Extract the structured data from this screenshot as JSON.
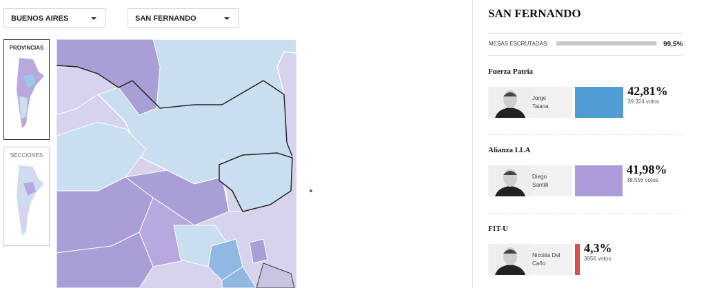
{
  "filters": {
    "province": "BUENOS AIRES",
    "district": "SAN FERNANDO"
  },
  "map_views": {
    "provinces": "PROVINCIAS",
    "sections": "SECCIONES"
  },
  "results": {
    "title": "SAN FERNANDO",
    "progress": {
      "label": "MESAS ESCRUTADAS:",
      "value": 99.5,
      "value_label": "99,5%"
    },
    "candidates": [
      {
        "party": "Fuerza Patria",
        "name": "Jorge Taiana",
        "percent": {
          "value": 42.81,
          "label": "42,81%"
        },
        "votes": "39.324 votos",
        "color": "#4f9bd3"
      },
      {
        "party": "Alianza LLA",
        "name": "Diego Santilli",
        "percent": {
          "value": 41.98,
          "label": "41,98%"
        },
        "votes": "38.556 votos",
        "color": "#ad9bd9"
      },
      {
        "party": "FIT-U",
        "name": "Nicolás Del Caño",
        "percent": {
          "value": 4.3,
          "label": "4,3%"
        },
        "votes": "3956 votos",
        "color": "#d94f4f"
      }
    ]
  }
}
